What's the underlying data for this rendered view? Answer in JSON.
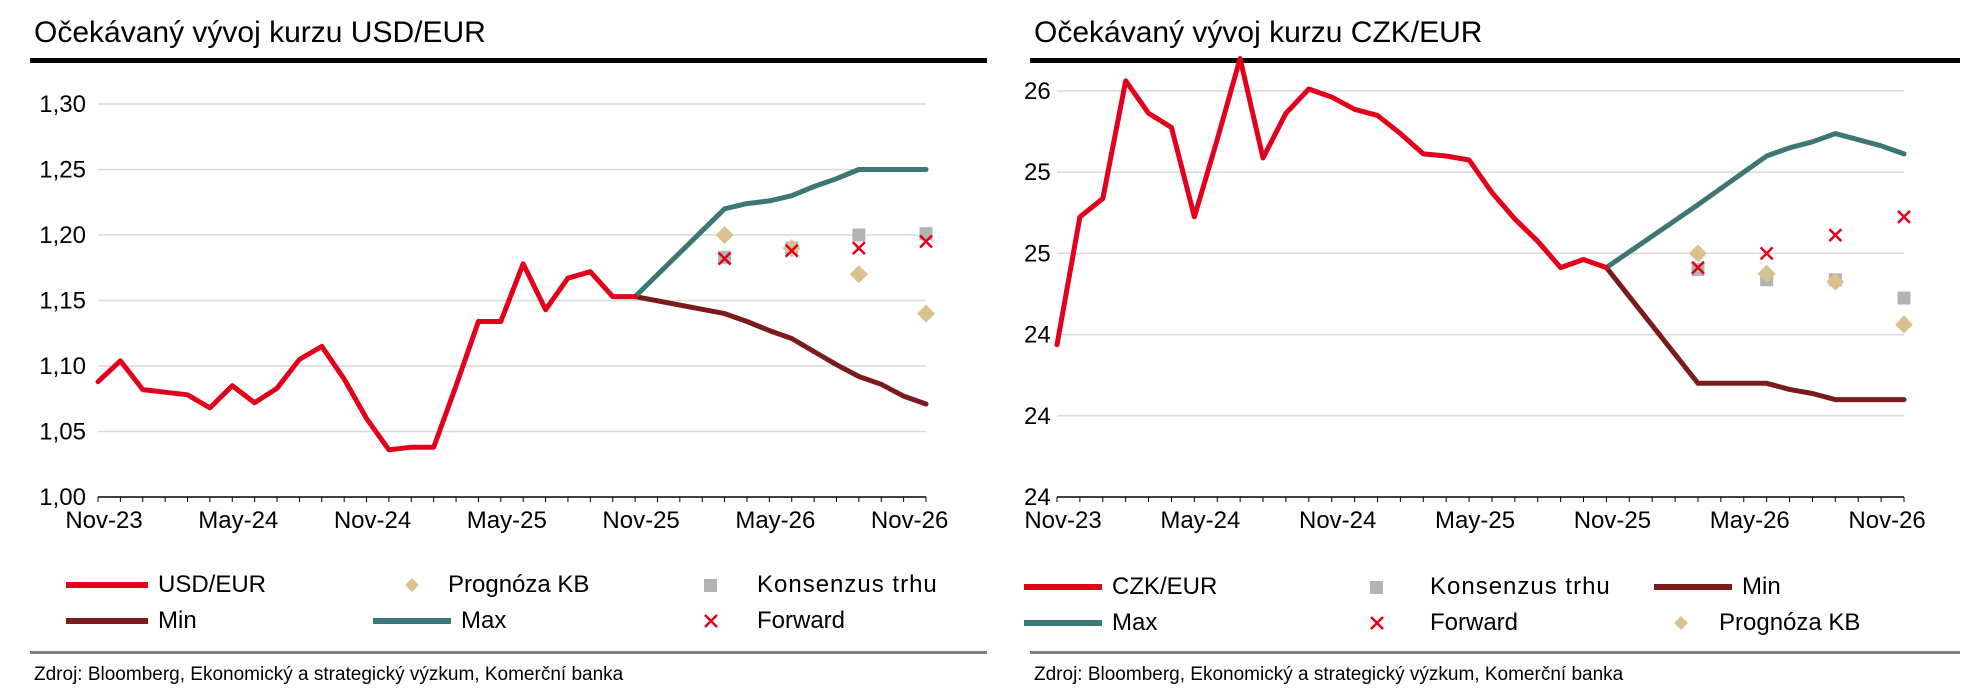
{
  "charts": [
    {
      "id": "usd",
      "title": "Očekávaný vývoj kurzu USD/EUR",
      "source": "Zdroj: Bloomberg, Ekonomický a strategický výzkum, Komerční banka",
      "legend": [
        "USD/EUR",
        "Prognóza KB",
        "Konsenzus trhu",
        "Min",
        "Max",
        "Forward"
      ]
    },
    {
      "id": "czk",
      "title": "Očekávaný vývoj kurzu CZK/EUR",
      "source": "Zdroj: Bloomberg, Ekonomický a strategický výzkum, Komerční banka",
      "legend": [
        "CZK/EUR",
        "Konsenzus trhu",
        "Min",
        "Max",
        "Forward",
        "Prognóza KB"
      ]
    }
  ],
  "colors": {
    "spot": "#e2001a",
    "min": "#7b1c1c",
    "max": "#3d7677",
    "forecast_kb": "#d9c290",
    "consensus": "#b3b3b3",
    "forward": "#e2001a",
    "grid": "#d9d9d9"
  },
  "chart_data": [
    {
      "type": "line",
      "title": "Očekávaný vývoj kurzu USD/EUR",
      "x_tick_labels": [
        "Nov-23",
        "May-24",
        "Nov-24",
        "May-25",
        "Nov-25",
        "May-26",
        "Nov-26"
      ],
      "x_range": [
        "2023-11",
        "2026-12"
      ],
      "y_tick_labels": [
        "1,00",
        "1,05",
        "1,10",
        "1,15",
        "1,20",
        "1,25",
        "1,30"
      ],
      "ylim": [
        1.0,
        1.3
      ],
      "grid": true,
      "legend_position": "bottom",
      "series": [
        {
          "name": "USD/EUR",
          "style": "line",
          "x": [
            "2023-11",
            "2023-12",
            "2024-01",
            "2024-02",
            "2024-03",
            "2024-04",
            "2024-05",
            "2024-06",
            "2024-07",
            "2024-08",
            "2024-09",
            "2024-10",
            "2024-11",
            "2024-12",
            "2025-01",
            "2025-02",
            "2025-03",
            "2025-04",
            "2025-05",
            "2025-06",
            "2025-07",
            "2025-08",
            "2025-09",
            "2025-10",
            "2025-11"
          ],
          "values": [
            1.088,
            1.104,
            1.082,
            1.08,
            1.078,
            1.068,
            1.085,
            1.072,
            1.083,
            1.105,
            1.115,
            1.09,
            1.06,
            1.036,
            1.038,
            1.038,
            1.085,
            1.134,
            1.134,
            1.178,
            1.143,
            1.167,
            1.172,
            1.153,
            1.153
          ]
        },
        {
          "name": "Max",
          "style": "line",
          "x": [
            "2025-11",
            "2026-03",
            "2026-04",
            "2026-05",
            "2026-06",
            "2026-07",
            "2026-08",
            "2026-09",
            "2026-10",
            "2026-11",
            "2026-12"
          ],
          "values": [
            1.153,
            1.22,
            1.224,
            1.226,
            1.23,
            1.237,
            1.243,
            1.25,
            1.25,
            1.25,
            1.25
          ]
        },
        {
          "name": "Min",
          "style": "line",
          "x": [
            "2025-11",
            "2026-03",
            "2026-04",
            "2026-05",
            "2026-06",
            "2026-07",
            "2026-08",
            "2026-09",
            "2026-10",
            "2026-11",
            "2026-12"
          ],
          "values": [
            1.153,
            1.14,
            1.134,
            1.127,
            1.121,
            1.111,
            1.101,
            1.092,
            1.086,
            1.077,
            1.071
          ]
        },
        {
          "name": "Prognóza KB",
          "style": "diamond",
          "x": [
            "2026-03",
            "2026-06",
            "2026-09",
            "2026-12"
          ],
          "values": [
            1.2,
            1.19,
            1.17,
            1.14
          ]
        },
        {
          "name": "Konsenzus trhu",
          "style": "square",
          "x": [
            "2026-03",
            "2026-06",
            "2026-09",
            "2026-12"
          ],
          "values": [
            1.183,
            1.19,
            1.2,
            1.201
          ]
        },
        {
          "name": "Forward",
          "style": "cross",
          "x": [
            "2026-03",
            "2026-06",
            "2026-09",
            "2026-12"
          ],
          "values": [
            1.182,
            1.188,
            1.19,
            1.195
          ]
        }
      ]
    },
    {
      "type": "line",
      "title": "Očekávaný vývoj kurzu CZK/EUR",
      "x_tick_labels": [
        "Nov-23",
        "May-24",
        "Nov-24",
        "May-25",
        "Nov-25",
        "May-26",
        "Nov-26"
      ],
      "x_range": [
        "2023-11",
        "2026-12"
      ],
      "y_tick_labels": [
        "24",
        "24",
        "24",
        "25",
        "25",
        "26"
      ],
      "ylim": [
        24.0,
        26.0
      ],
      "grid": true,
      "legend_position": "bottom",
      "series": [
        {
          "name": "CZK/EUR",
          "style": "line",
          "x": [
            "2023-11",
            "2023-12",
            "2024-01",
            "2024-02",
            "2024-03",
            "2024-04",
            "2024-05",
            "2024-06",
            "2024-07",
            "2024-08",
            "2024-09",
            "2024-10",
            "2024-11",
            "2024-12",
            "2025-01",
            "2025-02",
            "2025-03",
            "2025-04",
            "2025-05",
            "2025-06",
            "2025-07",
            "2025-08",
            "2025-09",
            "2025-10",
            "2025-11"
          ],
          "values": [
            24.75,
            25.38,
            25.47,
            26.05,
            25.89,
            25.82,
            25.38,
            25.76,
            26.16,
            25.67,
            25.89,
            26.01,
            25.97,
            25.91,
            25.88,
            25.79,
            25.69,
            25.68,
            25.66,
            25.5,
            25.37,
            25.26,
            25.13,
            25.17,
            25.13
          ]
        },
        {
          "name": "Max",
          "style": "line",
          "x": [
            "2025-11",
            "2026-03",
            "2026-04",
            "2026-05",
            "2026-06",
            "2026-07",
            "2026-08",
            "2026-09",
            "2026-10",
            "2026-11",
            "2026-12"
          ],
          "values": [
            25.13,
            25.44,
            25.52,
            25.6,
            25.68,
            25.72,
            25.75,
            25.79,
            25.76,
            25.73,
            25.69
          ]
        },
        {
          "name": "Min",
          "style": "line",
          "x": [
            "2025-11",
            "2026-03",
            "2026-04",
            "2026-05",
            "2026-06",
            "2026-07",
            "2026-08",
            "2026-09",
            "2026-10",
            "2026-11",
            "2026-12"
          ],
          "values": [
            25.13,
            24.56,
            24.56,
            24.56,
            24.56,
            24.53,
            24.51,
            24.48,
            24.48,
            24.48,
            24.48
          ]
        },
        {
          "name": "Prognóza KB",
          "style": "diamond",
          "x": [
            "2026-03",
            "2026-06",
            "2026-09",
            "2026-12"
          ],
          "values": [
            25.2,
            25.1,
            25.06,
            24.85
          ]
        },
        {
          "name": "Konsenzus trhu",
          "style": "square",
          "x": [
            "2026-03",
            "2026-06",
            "2026-09",
            "2026-12"
          ],
          "values": [
            25.12,
            25.07,
            25.07,
            24.98
          ]
        },
        {
          "name": "Forward",
          "style": "cross",
          "x": [
            "2026-03",
            "2026-06",
            "2026-09",
            "2026-12"
          ],
          "values": [
            25.13,
            25.2,
            25.29,
            25.38
          ]
        }
      ]
    }
  ]
}
